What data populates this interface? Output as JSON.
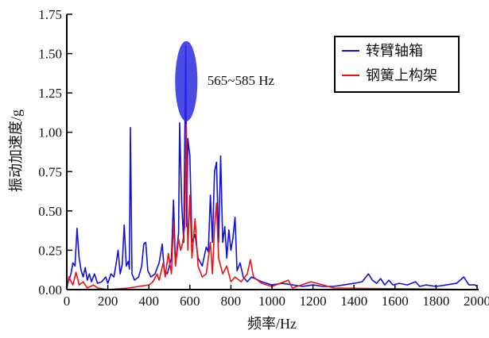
{
  "chart_data": {
    "type": "line",
    "title": "",
    "xlabel": "频率/Hz",
    "ylabel": "振动加速度/g",
    "xlim": [
      0,
      2000
    ],
    "ylim": [
      0,
      1.75
    ],
    "xticks": [
      "0",
      "200",
      "400",
      "600",
      "800",
      "1000",
      "1200",
      "1400",
      "1600",
      "1800",
      "2000"
    ],
    "xtick_values": [
      0,
      200,
      400,
      600,
      800,
      1000,
      1200,
      1400,
      1600,
      1800,
      2000
    ],
    "yticks": [
      "0.00",
      "0.25",
      "0.50",
      "0.75",
      "1.00",
      "1.25",
      "1.50",
      "1.75"
    ],
    "ytick_values": [
      0,
      0.25,
      0.5,
      0.75,
      1.0,
      1.25,
      1.5,
      1.75
    ],
    "grid": false,
    "legend_position": "top-right",
    "annotation": {
      "text": "565~585 Hz",
      "freq_range": [
        565,
        600
      ],
      "value_range": [
        1.07,
        1.58
      ],
      "color": "#2a2ae0"
    },
    "series": [
      {
        "name": "转臂轴箱",
        "color": "#1010e0",
        "x": [
          0,
          20,
          30,
          40,
          50,
          60,
          70,
          80,
          90,
          100,
          110,
          120,
          135,
          150,
          170,
          190,
          200,
          215,
          230,
          240,
          250,
          260,
          270,
          280,
          290,
          300,
          305,
          310,
          318,
          330,
          350,
          365,
          375,
          385,
          395,
          410,
          430,
          450,
          465,
          475,
          490,
          510,
          520,
          530,
          545,
          550,
          560,
          570,
          580,
          585,
          590,
          600,
          610,
          625,
          640,
          660,
          680,
          690,
          700,
          710,
          720,
          730,
          740,
          750,
          760,
          770,
          780,
          790,
          800,
          810,
          820,
          830,
          845,
          860,
          880,
          900,
          950,
          1000,
          1050,
          1100,
          1150,
          1200,
          1250,
          1300,
          1350,
          1400,
          1440,
          1470,
          1490,
          1510,
          1530,
          1550,
          1570,
          1590,
          1620,
          1660,
          1700,
          1720,
          1750,
          1800,
          1850,
          1900,
          1935,
          1960,
          1990,
          2000
        ],
        "y": [
          0.02,
          0.1,
          0.17,
          0.15,
          0.39,
          0.2,
          0.12,
          0.08,
          0.14,
          0.06,
          0.1,
          0.05,
          0.1,
          0.04,
          0.05,
          0.08,
          0.04,
          0.1,
          0.08,
          0.16,
          0.25,
          0.1,
          0.16,
          0.41,
          0.15,
          0.18,
          0.13,
          1.03,
          0.1,
          0.06,
          0.08,
          0.15,
          0.29,
          0.3,
          0.12,
          0.08,
          0.1,
          0.17,
          0.29,
          0.12,
          0.1,
          0.2,
          0.57,
          0.16,
          0.36,
          1.06,
          0.55,
          0.3,
          1.55,
          0.4,
          0.96,
          0.85,
          0.3,
          0.35,
          0.2,
          0.15,
          0.27,
          0.24,
          0.6,
          0.3,
          0.75,
          0.81,
          0.3,
          0.85,
          0.3,
          0.4,
          0.2,
          0.38,
          0.25,
          0.33,
          0.46,
          0.12,
          0.17,
          0.08,
          0.05,
          0.08,
          0.05,
          0.03,
          0.04,
          0.03,
          0.02,
          0.03,
          0.02,
          0.02,
          0.03,
          0.04,
          0.05,
          0.1,
          0.06,
          0.04,
          0.07,
          0.03,
          0.06,
          0.03,
          0.04,
          0.03,
          0.05,
          0.02,
          0.03,
          0.02,
          0.03,
          0.04,
          0.08,
          0.03,
          0.03,
          0.02
        ]
      },
      {
        "name": "钢簧上构架",
        "color": "#ee1111",
        "x": [
          0,
          10,
          30,
          45,
          60,
          80,
          100,
          130,
          150,
          200,
          300,
          400,
          420,
          440,
          450,
          470,
          480,
          495,
          510,
          520,
          530,
          545,
          555,
          565,
          575,
          582,
          590,
          600,
          610,
          625,
          640,
          660,
          680,
          700,
          710,
          720,
          730,
          740,
          760,
          780,
          800,
          820,
          850,
          880,
          895,
          910,
          950,
          1000,
          1080,
          1100,
          1190,
          1250,
          1300,
          2000
        ],
        "y": [
          0,
          0.08,
          0.03,
          0.11,
          0.03,
          0.05,
          0.01,
          0.03,
          0.01,
          0,
          0.01,
          0.03,
          0.05,
          0.1,
          0.06,
          0.17,
          0.08,
          0.23,
          0.1,
          0.43,
          0.15,
          0.32,
          0.25,
          0.3,
          0.4,
          1.05,
          0.25,
          0.6,
          0.2,
          0.45,
          0.15,
          0.08,
          0.1,
          0.3,
          0.1,
          0.4,
          0.55,
          0.2,
          0.1,
          0.15,
          0.05,
          0.08,
          0.05,
          0.1,
          0.19,
          0.08,
          0.04,
          0.02,
          0.06,
          0.01,
          0.05,
          0.03,
          0.01,
          0
        ]
      }
    ]
  }
}
